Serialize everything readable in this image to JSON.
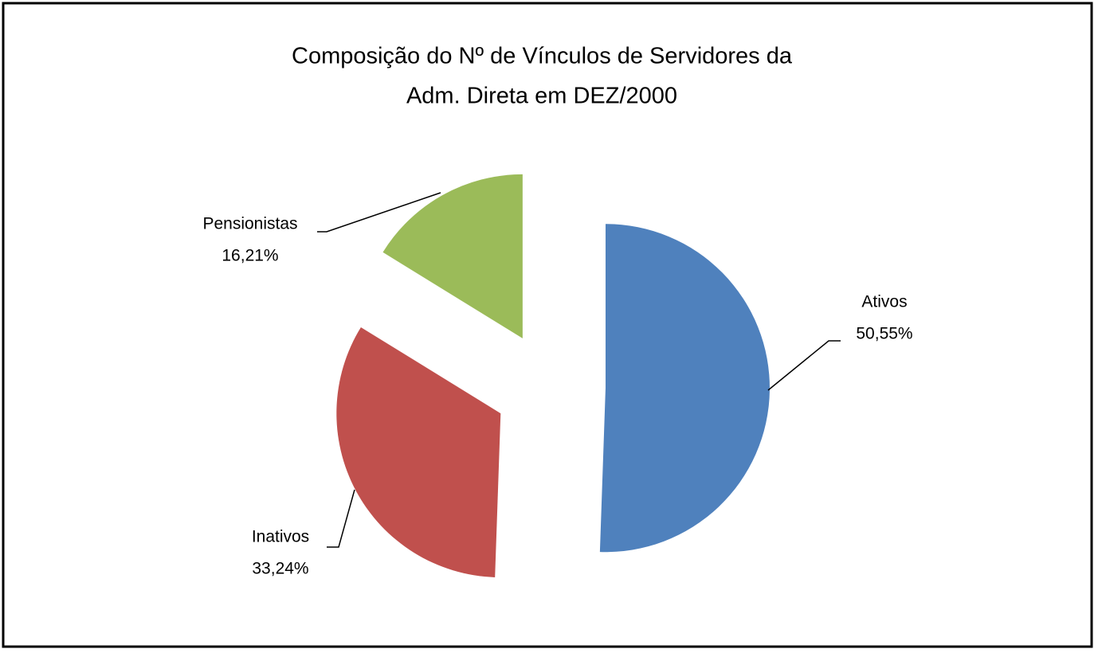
{
  "chart_data": {
    "type": "pie",
    "title": [
      "Composição do Nº de Vínculos de Servidores da",
      "Adm. Direta em DEZ/2000"
    ],
    "categories": [
      "Ativos",
      "Inativos",
      "Pensionistas"
    ],
    "values": [
      50.55,
      33.24,
      16.21
    ],
    "value_labels": [
      "50,55%",
      "33,24%",
      "16,21%"
    ],
    "colors": [
      "#4f81bd",
      "#c0504d",
      "#9bbb59"
    ],
    "exploded": true
  }
}
